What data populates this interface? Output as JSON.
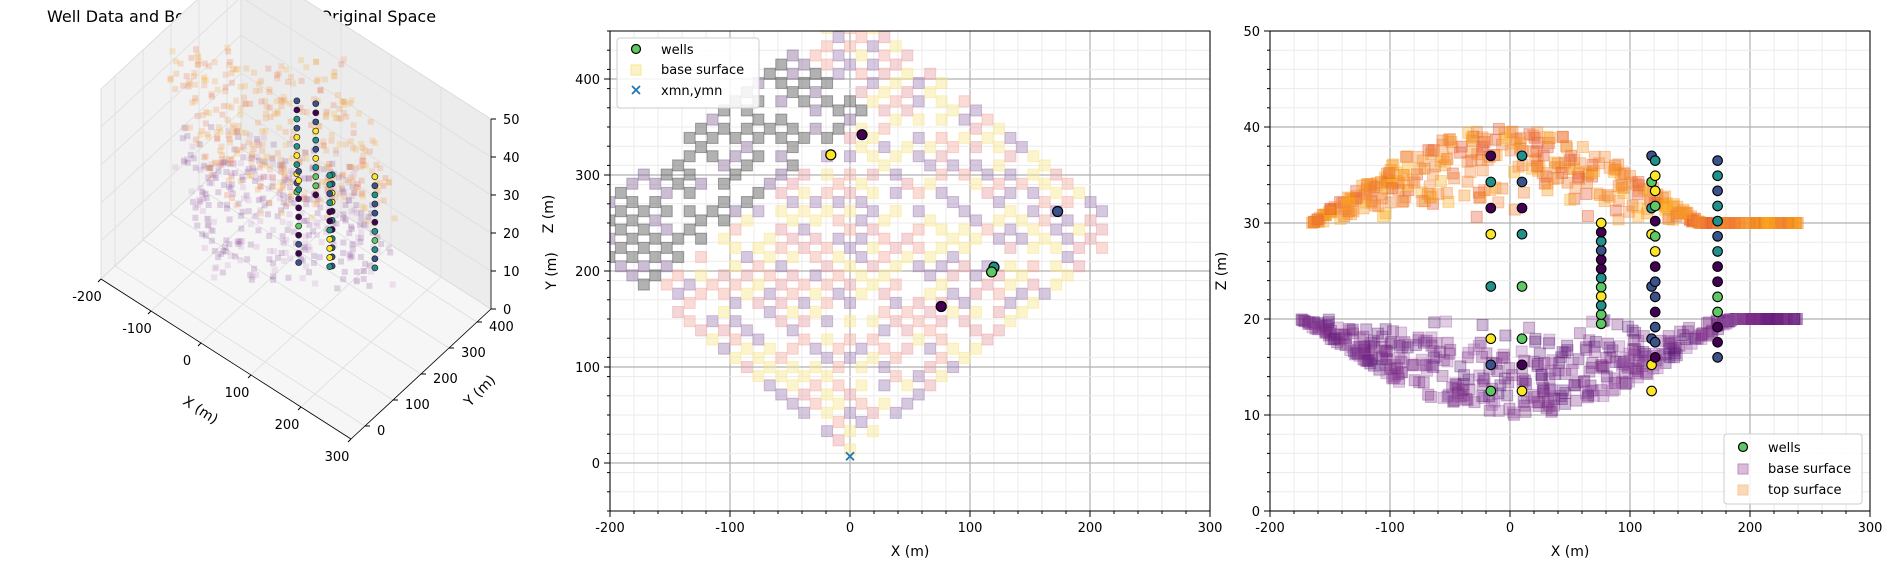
{
  "chart_data": [
    {
      "type": "scatter",
      "projection": "3d",
      "title": "Well Data and Bounding Surfaces Original Space",
      "xlabel": "X (m)",
      "ylabel": "Y (m)",
      "zlabel": "Z (m)",
      "xlim": [
        -200,
        300
      ],
      "ylim": [
        -50,
        450
      ],
      "zlim": [
        0,
        50
      ],
      "x_ticks": [
        -200,
        -100,
        0,
        100,
        200,
        300
      ],
      "y_ticks": [
        0,
        100,
        200,
        300,
        400
      ],
      "z_ticks": [
        0,
        10,
        20,
        30,
        40,
        50
      ],
      "series": [
        {
          "name": "wells",
          "marker": "o"
        },
        {
          "name": "base surface",
          "marker": "s",
          "z_range": [
            10,
            20
          ]
        },
        {
          "name": "top surface",
          "marker": "s",
          "z_range": [
            30,
            40
          ]
        }
      ]
    },
    {
      "type": "scatter",
      "xlabel": "X (m)",
      "ylabel": "Y (m)",
      "xlim": [
        -200,
        300
      ],
      "ylim": [
        -50,
        450
      ],
      "x_ticks": [
        -200,
        -100,
        0,
        100,
        200,
        300
      ],
      "y_ticks": [
        0,
        100,
        200,
        300,
        400
      ],
      "grid": true,
      "legend": "upper-left",
      "series": [
        {
          "name": "wells",
          "marker": "o",
          "x": [
            -16,
            10,
            120,
            118,
            173,
            76
          ],
          "y": [
            321,
            342,
            204,
            199,
            262,
            163
          ]
        },
        {
          "name": "base surface",
          "marker": "s",
          "color": "#f7e08a"
        },
        {
          "name": "xmn,ymn",
          "marker": "x",
          "color": "#1f77b4",
          "x": [
            0
          ],
          "y": [
            7
          ]
        }
      ]
    },
    {
      "type": "scatter",
      "xlabel": "X (m)",
      "ylabel": "Z (m)",
      "xlim": [
        -200,
        300
      ],
      "ylim": [
        0,
        50
      ],
      "x_ticks": [
        -200,
        -100,
        0,
        100,
        200,
        300
      ],
      "y_ticks": [
        0,
        10,
        20,
        30,
        40,
        50
      ],
      "grid": true,
      "legend": "lower-right",
      "series": [
        {
          "name": "wells",
          "marker": "o",
          "well_x": [
            -16,
            10,
            76,
            118,
            121,
            173
          ]
        },
        {
          "name": "base surface",
          "marker": "s",
          "color": "#c08fbf",
          "z_range": [
            10,
            20
          ]
        },
        {
          "name": "top surface",
          "marker": "s",
          "color": "#f8c79a",
          "z_range": [
            30,
            40
          ]
        }
      ]
    }
  ]
}
